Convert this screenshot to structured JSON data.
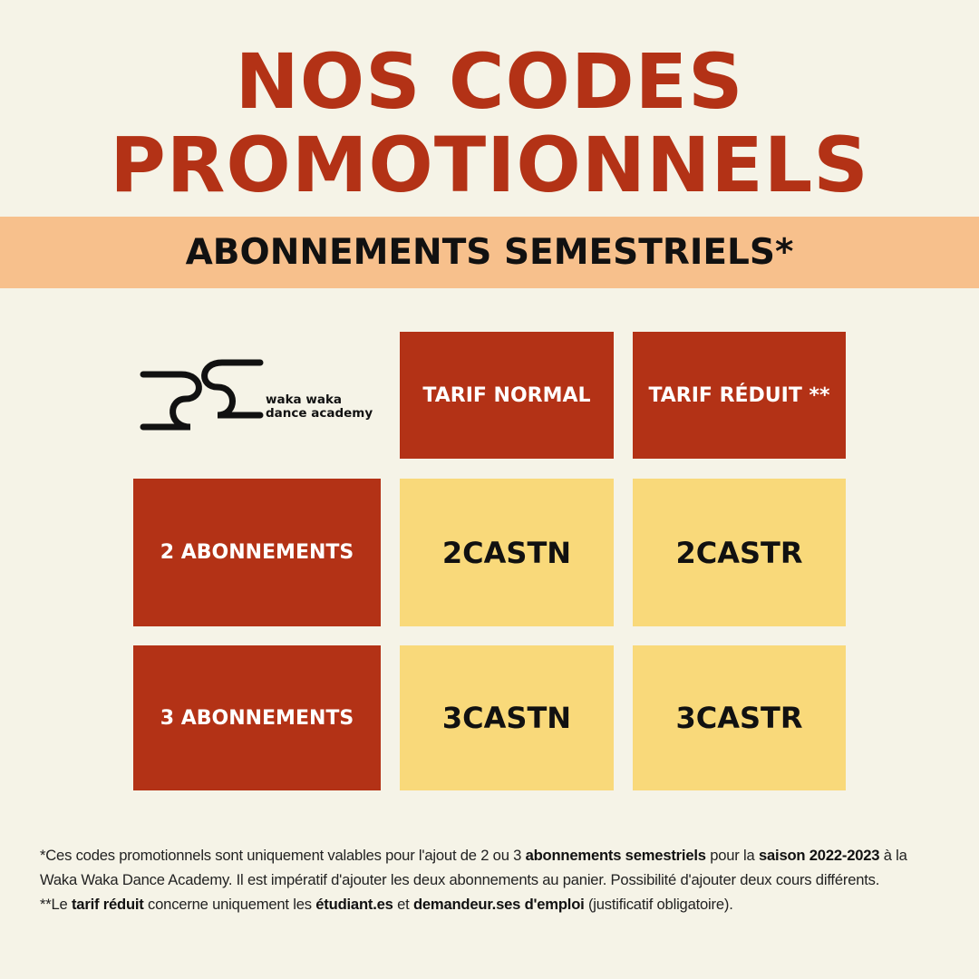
{
  "title": {
    "line1": "NOS CODES",
    "line2": "PROMOTIONNELS"
  },
  "subtitle": "ABONNEMENTS SEMESTRIELS*",
  "logo": {
    "line1": "waka waka",
    "line2": "dance academy"
  },
  "table": {
    "headers": [
      "TARIF NORMAL",
      "TARIF RÉDUIT **"
    ],
    "rows": [
      {
        "label": "2 ABONNEMENTS",
        "codes": [
          "2CASTN",
          "2CASTR"
        ]
      },
      {
        "label": "3 ABONNEMENTS",
        "codes": [
          "3CASTN",
          "3CASTR"
        ]
      }
    ]
  },
  "footnotes": {
    "p1": [
      {
        "t": "*Ces codes promotionnels sont uniquement valables pour l'ajout de 2 ou 3 "
      },
      {
        "t": "abonnements semestriels",
        "b": true
      },
      {
        "t": " pour la "
      },
      {
        "t": "saison 2022-2023",
        "b": true
      },
      {
        "t": " à la Waka Waka Dance Academy. Il est impératif d'ajouter les deux abonnements au panier. Possibilité d'ajouter deux cours différents."
      }
    ],
    "p2": [
      {
        "t": "**Le "
      },
      {
        "t": "tarif réduit",
        "b": true
      },
      {
        "t": " concerne uniquement les "
      },
      {
        "t": "étudiant.es",
        "b": true
      },
      {
        "t": " et "
      },
      {
        "t": "demandeur.ses d'emploi",
        "b": true
      },
      {
        "t": " (justificatif obligatoire)."
      }
    ]
  },
  "colors": {
    "background": "#f5f3e7",
    "red": "#b33216",
    "peach": "#f7c08c",
    "yellow": "#f9d97a"
  }
}
